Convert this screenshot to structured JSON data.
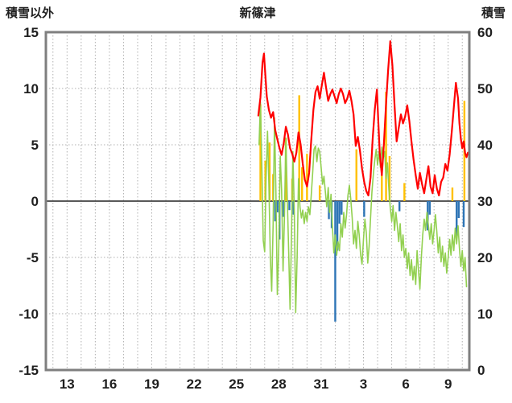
{
  "page": {
    "background": "#ffffff"
  },
  "chart_data": {
    "type": "line",
    "title": "新篠津",
    "left_axis": {
      "label": "積雪以外",
      "min": -15,
      "max": 15,
      "ticks": [
        15,
        10,
        5,
        0,
        -5,
        -10,
        -15
      ]
    },
    "right_axis": {
      "label": "積雪",
      "min": 0,
      "max": 60,
      "ticks": [
        60,
        50,
        40,
        30,
        20,
        10,
        0
      ]
    },
    "x_axis": {
      "min": 11.5,
      "max": 41.5,
      "grid_start": 12,
      "grid_end": 41,
      "grid_step": 1,
      "tick_positions": [
        13,
        16,
        19,
        22,
        25,
        28,
        31,
        34,
        37,
        40
      ],
      "tick_labels": [
        "13",
        "16",
        "19",
        "22",
        "25",
        "28",
        "31",
        "3",
        "6",
        "9"
      ]
    },
    "grid": "dotted",
    "legend": "none",
    "colors": {
      "grid": "#b0b0b0",
      "zero_line": "#595959",
      "frame": "#7f7f7f",
      "text": "#1f1f1f",
      "red": "#ff0000",
      "green": "#92d050",
      "yellow": "#ffc000",
      "blue": "#2e75b6",
      "purple": "#7030a0"
    },
    "series": [
      {
        "name": "yellow-bars",
        "type": "bar",
        "axis": "left",
        "color_key": "yellow",
        "points": [
          [
            26.7,
            8.6
          ],
          [
            27.05,
            3.6
          ],
          [
            27.35,
            5.2
          ],
          [
            27.6,
            2.4
          ],
          [
            28.5,
            5.6
          ],
          [
            28.95,
            2.0
          ],
          [
            29.45,
            9.4
          ],
          [
            29.65,
            3.0
          ],
          [
            30.0,
            4.2
          ],
          [
            30.9,
            1.4
          ],
          [
            33.5,
            4.6
          ],
          [
            35.3,
            2.6
          ],
          [
            35.6,
            9.7
          ],
          [
            35.85,
            4.0
          ],
          [
            36.9,
            1.6
          ],
          [
            40.3,
            1.2
          ],
          [
            41.15,
            8.9
          ]
        ]
      },
      {
        "name": "blue-bars",
        "type": "bar",
        "axis": "left",
        "color_key": "blue",
        "points": [
          [
            27.75,
            -1.8
          ],
          [
            27.9,
            -1.0
          ],
          [
            28.05,
            -3.4
          ],
          [
            28.3,
            -1.4
          ],
          [
            28.75,
            -0.8
          ],
          [
            29.05,
            -1.2
          ],
          [
            31.55,
            -1.6
          ],
          [
            31.75,
            -2.4
          ],
          [
            32.0,
            -10.7
          ],
          [
            32.15,
            -4.4
          ],
          [
            32.3,
            -2.0
          ],
          [
            32.45,
            -1.2
          ],
          [
            34.05,
            -1.4
          ],
          [
            36.55,
            -0.9
          ],
          [
            38.55,
            -2.6
          ],
          [
            38.7,
            -1.2
          ],
          [
            40.6,
            -3.1
          ],
          [
            40.75,
            -1.5
          ],
          [
            41.1,
            -2.3
          ]
        ]
      },
      {
        "name": "green-line",
        "type": "line",
        "axis": "left",
        "color_key": "green",
        "width": 1.6,
        "points": [
          [
            26.6,
            5.0
          ],
          [
            26.7,
            8.8
          ],
          [
            26.8,
            3.0
          ],
          [
            26.9,
            -3.5
          ],
          [
            27.0,
            -4.5
          ],
          [
            27.1,
            2.0
          ],
          [
            27.2,
            6.2
          ],
          [
            27.3,
            1.5
          ],
          [
            27.4,
            -5.0
          ],
          [
            27.5,
            -8.0
          ],
          [
            27.6,
            -2.0
          ],
          [
            27.7,
            7.4
          ],
          [
            27.8,
            0.5
          ],
          [
            27.9,
            -8.3
          ],
          [
            28.0,
            -4.0
          ],
          [
            28.1,
            4.0
          ],
          [
            28.2,
            1.0
          ],
          [
            28.3,
            -6.2
          ],
          [
            28.4,
            -1.5
          ],
          [
            28.5,
            5.6
          ],
          [
            28.6,
            0.5
          ],
          [
            28.7,
            -4.5
          ],
          [
            28.8,
            -9.6
          ],
          [
            28.9,
            -3.0
          ],
          [
            29.0,
            4.4
          ],
          [
            29.1,
            -1.0
          ],
          [
            29.2,
            -9.9
          ],
          [
            29.3,
            -5.0
          ],
          [
            29.4,
            2.0
          ],
          [
            29.5,
            -0.5
          ],
          [
            29.6,
            -1.5
          ],
          [
            29.7,
            -0.8
          ],
          [
            29.8,
            -2.0
          ],
          [
            29.9,
            -1.0
          ],
          [
            30.0,
            -1.8
          ],
          [
            30.1,
            -0.5
          ],
          [
            30.2,
            -1.2
          ],
          [
            30.3,
            0.5
          ],
          [
            30.4,
            2.5
          ],
          [
            30.5,
            4.6
          ],
          [
            30.6,
            4.9
          ],
          [
            30.7,
            3.5
          ],
          [
            30.8,
            4.7
          ],
          [
            30.9,
            4.4
          ],
          [
            31.0,
            3.0
          ],
          [
            31.1,
            1.5
          ],
          [
            31.2,
            2.2
          ],
          [
            31.3,
            0.8
          ],
          [
            31.4,
            -0.5
          ],
          [
            31.5,
            1.2
          ],
          [
            31.6,
            -1.0
          ],
          [
            31.7,
            0.6
          ],
          [
            31.8,
            -2.2
          ],
          [
            31.9,
            -4.6
          ],
          [
            32.0,
            -3.0
          ],
          [
            32.1,
            -4.8
          ],
          [
            32.2,
            -3.6
          ],
          [
            32.3,
            -4.4
          ],
          [
            32.4,
            -2.0
          ],
          [
            32.5,
            -3.2
          ],
          [
            32.6,
            -1.0
          ],
          [
            32.7,
            -2.4
          ],
          [
            32.8,
            -1.2
          ],
          [
            32.9,
            0.5
          ],
          [
            33.0,
            1.4
          ],
          [
            33.1,
            0.2
          ],
          [
            33.2,
            -1.5
          ],
          [
            33.3,
            -3.8
          ],
          [
            33.4,
            -2.6
          ],
          [
            33.5,
            -4.2
          ],
          [
            33.6,
            -1.8
          ],
          [
            33.7,
            -3.0
          ],
          [
            33.8,
            -4.8
          ],
          [
            33.9,
            -5.6
          ],
          [
            34.0,
            -3.4
          ],
          [
            34.1,
            -1.6
          ],
          [
            34.2,
            -2.8
          ],
          [
            34.3,
            -5.5
          ],
          [
            34.4,
            -4.0
          ],
          [
            34.5,
            -1.5
          ],
          [
            34.6,
            0.8
          ],
          [
            34.7,
            2.4
          ],
          [
            34.8,
            3.6
          ],
          [
            34.9,
            4.6
          ],
          [
            35.0,
            3.2
          ],
          [
            35.1,
            4.4
          ],
          [
            35.2,
            3.0
          ],
          [
            35.3,
            4.8
          ],
          [
            35.4,
            3.8
          ],
          [
            35.5,
            4.4
          ],
          [
            35.6,
            2.0
          ],
          [
            35.7,
            3.4
          ],
          [
            35.8,
            1.0
          ],
          [
            35.9,
            -0.6
          ],
          [
            36.0,
            -1.8
          ],
          [
            36.1,
            -0.4
          ],
          [
            36.2,
            -2.6
          ],
          [
            36.3,
            -1.0
          ],
          [
            36.4,
            -2.2
          ],
          [
            36.5,
            -3.6
          ],
          [
            36.6,
            -2.0
          ],
          [
            36.7,
            -4.4
          ],
          [
            36.8,
            -3.0
          ],
          [
            36.9,
            -5.0
          ],
          [
            37.0,
            -4.2
          ],
          [
            37.1,
            -6.0
          ],
          [
            37.2,
            -4.6
          ],
          [
            37.3,
            -6.6
          ],
          [
            37.4,
            -5.2
          ],
          [
            37.5,
            -7.0
          ],
          [
            37.6,
            -5.8
          ],
          [
            37.7,
            -7.4
          ],
          [
            37.8,
            -4.4
          ],
          [
            37.9,
            -6.2
          ],
          [
            38.0,
            -7.8
          ],
          [
            38.1,
            -5.0
          ],
          [
            38.2,
            -3.0
          ],
          [
            38.3,
            -1.6
          ],
          [
            38.4,
            -2.6
          ],
          [
            38.5,
            -1.0
          ],
          [
            38.6,
            -2.2
          ],
          [
            38.7,
            -3.4
          ],
          [
            38.8,
            -2.0
          ],
          [
            38.9,
            -3.8
          ],
          [
            39.0,
            -2.6
          ],
          [
            39.1,
            -1.2
          ],
          [
            39.2,
            -2.8
          ],
          [
            39.3,
            -4.6
          ],
          [
            39.4,
            -3.2
          ],
          [
            39.5,
            -5.4
          ],
          [
            39.6,
            -4.0
          ],
          [
            39.7,
            -5.8
          ],
          [
            39.8,
            -4.6
          ],
          [
            39.9,
            -6.4
          ],
          [
            40.0,
            -5.0
          ],
          [
            40.1,
            -3.4
          ],
          [
            40.2,
            -4.8
          ],
          [
            40.3,
            -3.0
          ],
          [
            40.4,
            -4.4
          ],
          [
            40.5,
            -2.4
          ],
          [
            40.6,
            -3.8
          ],
          [
            40.7,
            -2.2
          ],
          [
            40.8,
            -4.2
          ],
          [
            40.9,
            -5.8
          ],
          [
            41.0,
            -4.4
          ],
          [
            41.1,
            -6.2
          ],
          [
            41.2,
            -5.0
          ],
          [
            41.3,
            -7.6
          ]
        ]
      },
      {
        "name": "red-line",
        "type": "line",
        "axis": "left",
        "color_key": "red",
        "width": 2.2,
        "points": [
          [
            26.55,
            7.6
          ],
          [
            26.7,
            9.2
          ],
          [
            26.85,
            12.3
          ],
          [
            26.95,
            13.1
          ],
          [
            27.05,
            11.2
          ],
          [
            27.15,
            9.3
          ],
          [
            27.3,
            8.1
          ],
          [
            27.45,
            7.4
          ],
          [
            27.6,
            7.9
          ],
          [
            27.75,
            6.3
          ],
          [
            27.9,
            5.5
          ],
          [
            28.05,
            4.7
          ],
          [
            28.2,
            4.1
          ],
          [
            28.35,
            5.1
          ],
          [
            28.5,
            6.6
          ],
          [
            28.65,
            5.9
          ],
          [
            28.8,
            4.7
          ],
          [
            28.95,
            4.2
          ],
          [
            29.1,
            3.5
          ],
          [
            29.25,
            4.3
          ],
          [
            29.4,
            6.1
          ],
          [
            29.55,
            5.0
          ],
          [
            29.7,
            3.3
          ],
          [
            29.85,
            1.9
          ],
          [
            30.0,
            1.3
          ],
          [
            30.15,
            2.5
          ],
          [
            30.3,
            5.4
          ],
          [
            30.45,
            8.1
          ],
          [
            30.6,
            9.7
          ],
          [
            30.75,
            10.2
          ],
          [
            30.9,
            9.1
          ],
          [
            31.05,
            10.3
          ],
          [
            31.2,
            11.4
          ],
          [
            31.35,
            10.1
          ],
          [
            31.5,
            8.9
          ],
          [
            31.65,
            9.5
          ],
          [
            31.8,
            9.9
          ],
          [
            31.95,
            9.3
          ],
          [
            32.1,
            8.7
          ],
          [
            32.25,
            9.5
          ],
          [
            32.4,
            10.0
          ],
          [
            32.55,
            9.5
          ],
          [
            32.7,
            8.7
          ],
          [
            32.85,
            9.1
          ],
          [
            33.0,
            9.8
          ],
          [
            33.15,
            8.9
          ],
          [
            33.3,
            7.7
          ],
          [
            33.45,
            4.9
          ],
          [
            33.6,
            5.7
          ],
          [
            33.75,
            4.5
          ],
          [
            33.9,
            2.9
          ],
          [
            34.05,
            1.7
          ],
          [
            34.2,
            0.9
          ],
          [
            34.35,
            0.5
          ],
          [
            34.5,
            2.1
          ],
          [
            34.65,
            5.5
          ],
          [
            34.8,
            8.1
          ],
          [
            34.95,
            9.9
          ],
          [
            35.05,
            7.1
          ],
          [
            35.15,
            4.3
          ],
          [
            35.3,
            2.3
          ],
          [
            35.45,
            5.1
          ],
          [
            35.6,
            8.7
          ],
          [
            35.75,
            11.7
          ],
          [
            35.9,
            14.2
          ],
          [
            36.05,
            12.1
          ],
          [
            36.2,
            8.5
          ],
          [
            36.35,
            5.3
          ],
          [
            36.5,
            6.5
          ],
          [
            36.65,
            7.7
          ],
          [
            36.8,
            6.9
          ],
          [
            36.95,
            7.5
          ],
          [
            37.1,
            8.5
          ],
          [
            37.25,
            7.1
          ],
          [
            37.4,
            5.3
          ],
          [
            37.55,
            3.7
          ],
          [
            37.7,
            2.3
          ],
          [
            37.85,
            1.1
          ],
          [
            38.0,
            2.5
          ],
          [
            38.15,
            1.5
          ],
          [
            38.3,
            0.7
          ],
          [
            38.45,
            1.9
          ],
          [
            38.6,
            3.1
          ],
          [
            38.75,
            1.3
          ],
          [
            38.9,
            0.7
          ],
          [
            39.05,
            2.3
          ],
          [
            39.2,
            1.1
          ],
          [
            39.35,
            0.5
          ],
          [
            39.5,
            1.7
          ],
          [
            39.65,
            2.1
          ],
          [
            39.8,
            3.3
          ],
          [
            39.95,
            2.7
          ],
          [
            40.1,
            4.1
          ],
          [
            40.25,
            6.1
          ],
          [
            40.4,
            8.3
          ],
          [
            40.55,
            10.5
          ],
          [
            40.7,
            9.1
          ],
          [
            40.8,
            6.9
          ],
          [
            40.9,
            5.5
          ],
          [
            41.0,
            4.7
          ],
          [
            41.1,
            5.3
          ],
          [
            41.2,
            4.3
          ],
          [
            41.3,
            3.9
          ],
          [
            41.4,
            4.3
          ]
        ]
      },
      {
        "name": "snow-depth-line",
        "type": "line",
        "axis": "right",
        "color_key": "purple",
        "width": 2.5,
        "points": [
          [
            26.6,
            0
          ],
          [
            41.45,
            0
          ]
        ]
      }
    ]
  }
}
